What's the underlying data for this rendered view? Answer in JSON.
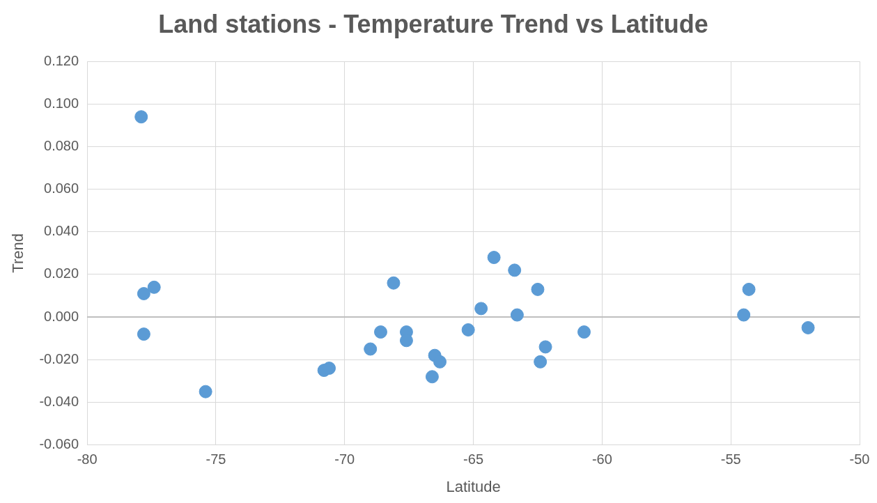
{
  "chart_data": {
    "type": "scatter",
    "title": "Land stations - Temperature Trend vs Latitude",
    "xlabel": "Latitude",
    "ylabel": "Trend",
    "x": [
      -77.9,
      -77.8,
      -77.4,
      -77.8,
      -75.4,
      -70.8,
      -70.6,
      -69.0,
      -68.6,
      -68.1,
      -67.6,
      -67.6,
      -66.6,
      -66.5,
      -66.3,
      -65.2,
      -64.7,
      -64.2,
      -63.4,
      -63.3,
      -62.5,
      -62.4,
      -62.2,
      -60.7,
      -54.5,
      -54.3,
      -52.0
    ],
    "series": [
      {
        "color": "#5b9bd5",
        "values": [
          0.094,
          0.011,
          0.014,
          -0.008,
          -0.035,
          -0.025,
          -0.024,
          -0.015,
          -0.007,
          0.016,
          -0.007,
          -0.011,
          -0.028,
          -0.018,
          -0.021,
          -0.006,
          0.004,
          0.028,
          0.022,
          0.001,
          0.013,
          -0.021,
          -0.014,
          -0.007,
          0.001,
          0.013,
          -0.005
        ]
      }
    ],
    "xlim": [
      -80,
      -50
    ],
    "xticks": [
      -80,
      -75,
      -70,
      -65,
      -60,
      -55,
      -50
    ],
    "ylim": [
      -0.06,
      0.12
    ],
    "yticks": [
      {
        "value": -0.06,
        "label": "-0.060"
      },
      {
        "value": -0.04,
        "label": "-0.040"
      },
      {
        "value": -0.02,
        "label": "-0.020"
      },
      {
        "value": 0,
        "label": "0.000"
      },
      {
        "value": 0.02,
        "label": "0.020"
      },
      {
        "value": 0.04,
        "label": "0.040"
      },
      {
        "value": 0.06,
        "label": "0.060"
      },
      {
        "value": 0.08,
        "label": "0.080"
      },
      {
        "value": 0.1,
        "label": "0.100"
      },
      {
        "value": 0.12,
        "label": "0.120"
      }
    ],
    "grid": true,
    "legend": false,
    "marker": "circle"
  }
}
